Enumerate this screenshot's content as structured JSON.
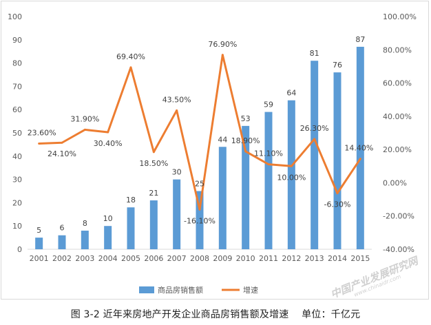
{
  "chart_data": {
    "type": "bar",
    "categories": [
      "2001",
      "2002",
      "2003",
      "2004",
      "2005",
      "2006",
      "2007",
      "2008",
      "2009",
      "2010",
      "2011",
      "2012",
      "2013",
      "2014",
      "2015"
    ],
    "series": [
      {
        "name": "商品房销售额",
        "type": "bar",
        "axis": "left",
        "values": [
          5,
          6,
          8,
          10,
          18,
          21,
          30,
          25,
          44,
          53,
          59,
          64,
          81,
          76,
          87
        ],
        "labels": [
          "5",
          "6",
          "8",
          "10",
          "18",
          "21",
          "30",
          "25",
          "44",
          "53",
          "59",
          "64",
          "81",
          "76",
          "87"
        ]
      },
      {
        "name": "增速",
        "type": "line",
        "axis": "right",
        "values": [
          23.6,
          24.1,
          31.9,
          30.4,
          69.4,
          18.5,
          43.5,
          -16.1,
          76.9,
          18.9,
          11.1,
          10.0,
          26.3,
          -6.3,
          14.4
        ],
        "labels": [
          "23.60%",
          "24.10%",
          "31.90%",
          "30.40%",
          "69.40%",
          "18.50%",
          "43.50%",
          "-16.10%",
          "76.90%",
          "18.90%",
          "11.10%",
          "10.00%",
          "26.30%",
          "-6.30%",
          "14.40%"
        ]
      }
    ],
    "y_left": {
      "lim": [
        0,
        100
      ],
      "ticks": [
        "0",
        "10",
        "20",
        "30",
        "40",
        "50",
        "60",
        "70",
        "80",
        "90",
        "100"
      ]
    },
    "y_right": {
      "lim": [
        -40,
        100
      ],
      "ticks": [
        "-40.00%",
        "-20.00%",
        "0.00%",
        "20.00%",
        "40.00%",
        "60.00%",
        "80.00%",
        "100.00%"
      ]
    },
    "grid": false,
    "legend_position": "bottom",
    "colors": {
      "bar": "#5b9bd5",
      "line": "#ed7d31",
      "axis": "#d9d9d9"
    }
  },
  "caption": "图 3-2 近年来房地产开发企业商品房销售额及增速    单位：千亿元",
  "watermark": {
    "main": "中国产业发展研究网",
    "sub": "www.chinaidr.com"
  }
}
